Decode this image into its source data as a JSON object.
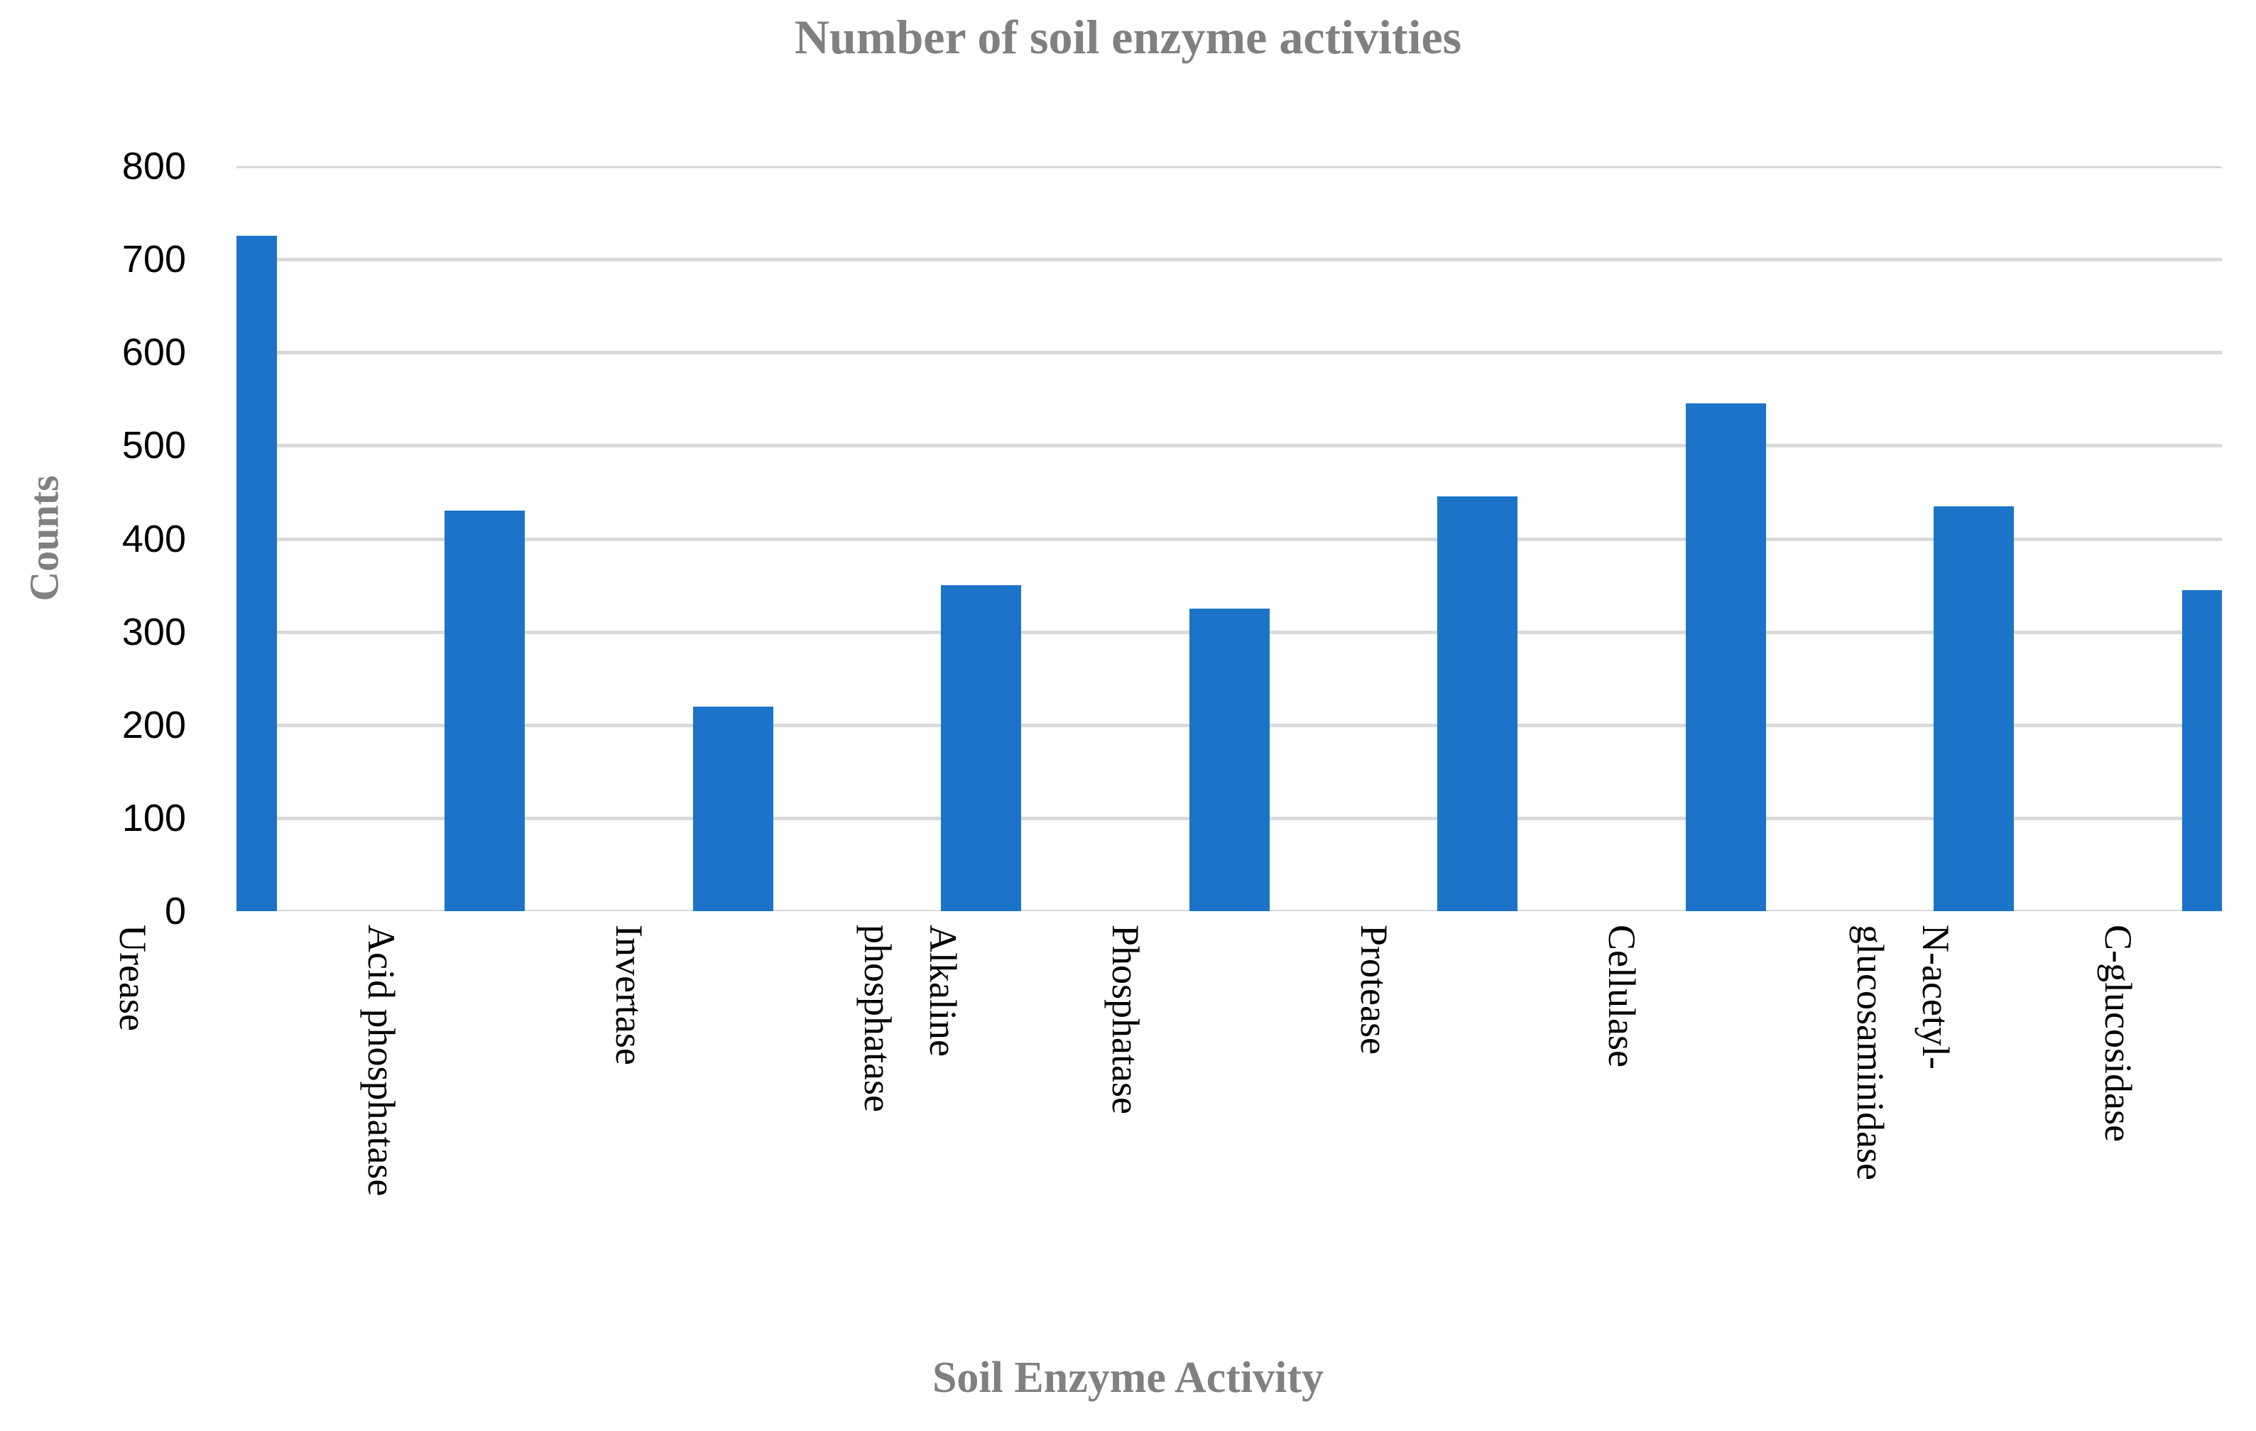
{
  "chart_data": {
    "type": "bar",
    "title": "Number of soil enzyme activities",
    "xlabel": "Soil Enzyme Activity",
    "ylabel": "Counts",
    "categories": [
      "Urease",
      "Acid phosphatase",
      "Invertase",
      "Alkaline phosphatase",
      "Phosphatase",
      "Protease",
      "Cellulase",
      "N-acetyl-glucosaminidase",
      "C-glucosidase"
    ],
    "category_label_lines": [
      [
        "Urease"
      ],
      [
        "Acid phosphatase"
      ],
      [
        "Invertase"
      ],
      [
        "Alkaline",
        "phosphatase"
      ],
      [
        "Phosphatase"
      ],
      [
        "Protease"
      ],
      [
        "Cellulase"
      ],
      [
        "N-acetyl-",
        "glucosaminidase"
      ],
      [
        "C-glucosidase"
      ]
    ],
    "values": [
      725,
      430,
      220,
      350,
      325,
      445,
      545,
      435,
      345
    ],
    "ylim": [
      0,
      800
    ],
    "yticks": [
      0,
      100,
      200,
      300,
      400,
      500,
      600,
      700,
      800
    ],
    "grid": "horizontal",
    "legend_position": "none",
    "colors": {
      "bar": "#1B74C9",
      "gridline": "#D9D9D9",
      "tick_text": "#000000",
      "title_text": "#808080"
    }
  }
}
